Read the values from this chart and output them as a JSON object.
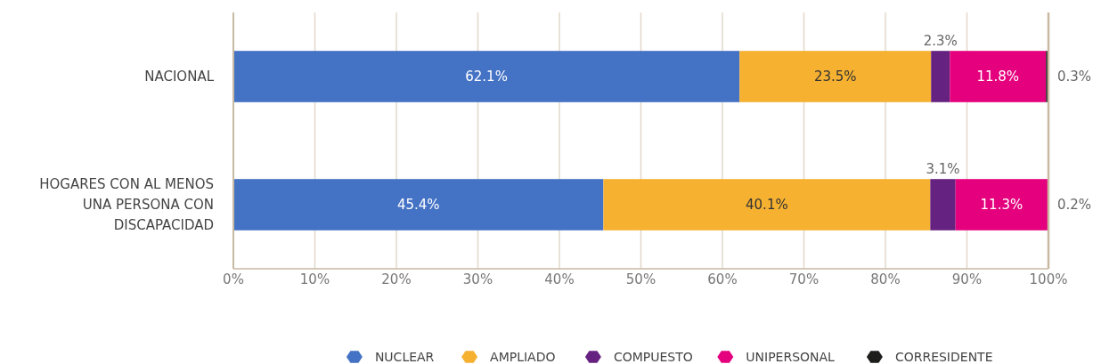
{
  "chart_data": {
    "type": "bar",
    "orientation": "horizontal",
    "stacked": true,
    "categories": [
      "NACIONAL",
      "HOGARES CON AL MENOS UNA PERSONA CON DISCAPACIDAD"
    ],
    "series": [
      {
        "name": "NUCLEAR",
        "color": "#4472c4",
        "values": [
          62.1,
          45.4
        ],
        "value_labels": [
          "62.1%",
          "45.4%"
        ]
      },
      {
        "name": "AMPLIADO",
        "color": "#f6b131",
        "values": [
          23.5,
          40.1
        ],
        "value_labels": [
          "23.5%",
          "40.1%"
        ]
      },
      {
        "name": "COMPUESTO",
        "color": "#662281",
        "values": [
          2.3,
          3.1
        ],
        "value_labels": [
          "2.3%",
          "3.1%"
        ]
      },
      {
        "name": "UNIPERSONAL",
        "color": "#e5007d",
        "values": [
          11.8,
          11.3
        ],
        "value_labels": [
          "11.8%",
          "11.3%"
        ]
      },
      {
        "name": "CORRESIDENTE",
        "color": "#1d1d1b",
        "values": [
          0.3,
          0.2
        ],
        "value_labels": [
          "0.3%",
          "0.2%"
        ]
      }
    ],
    "xlim": [
      0,
      100
    ],
    "xticks": [
      {
        "value": 0,
        "label": "0%"
      },
      {
        "value": 10,
        "label": "10%"
      },
      {
        "value": 20,
        "label": "20%"
      },
      {
        "value": 30,
        "label": "30%"
      },
      {
        "value": 40,
        "label": "40%"
      },
      {
        "value": 50,
        "label": "50%"
      },
      {
        "value": 60,
        "label": "60%"
      },
      {
        "value": 70,
        "label": "70%"
      },
      {
        "value": 80,
        "label": "80%"
      },
      {
        "value": 90,
        "label": "90%"
      },
      {
        "value": 100,
        "label": "100%"
      }
    ],
    "grid": "x",
    "legend": "bottom",
    "marker": "hexagon"
  }
}
